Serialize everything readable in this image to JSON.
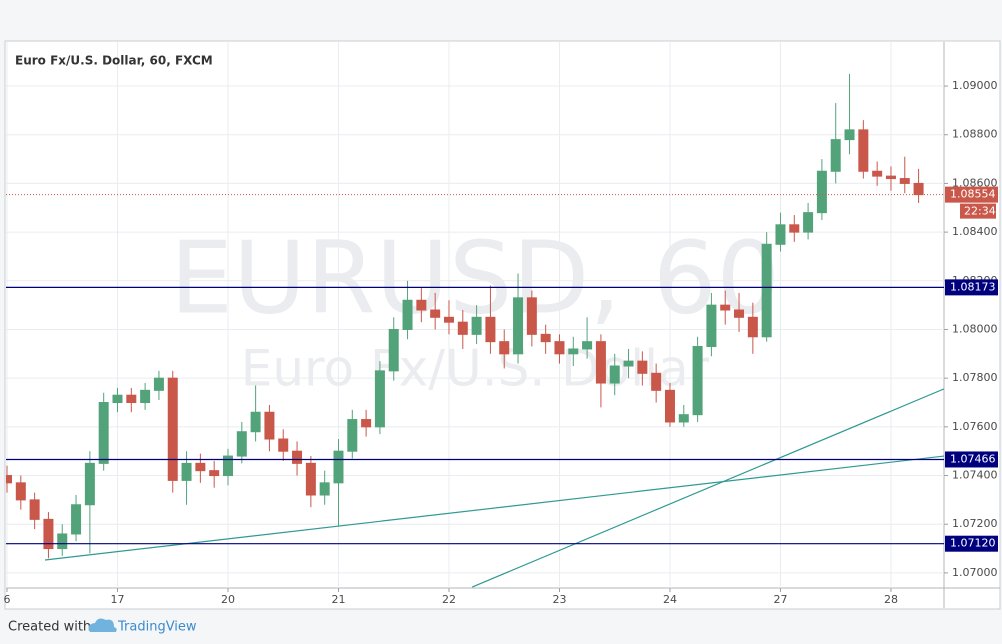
{
  "chart_data": {
    "type": "candlestick",
    "title": "Euro Fx/U.S. Dollar, 60, FXCM",
    "watermark_symbol": "EURUSD, 60",
    "watermark_name": "Euro Fx/U.S. Dollar",
    "x": [
      0,
      0.125,
      0.25,
      0.375,
      0.5,
      0.625,
      0.75,
      0.875,
      1,
      1.125,
      1.25,
      1.375,
      1.5,
      1.625,
      1.75,
      1.875,
      2,
      2.125,
      2.25,
      2.375,
      2.5,
      2.625,
      2.75,
      2.875,
      3,
      3.125,
      3.25,
      3.375,
      3.5,
      3.625,
      3.75,
      3.875,
      4,
      4.125,
      4.25,
      4.375,
      4.5,
      4.625,
      4.75,
      4.875,
      5,
      5.125,
      5.25,
      5.375,
      5.5,
      5.625,
      5.75,
      5.875,
      6,
      6.125,
      6.25,
      6.375,
      6.5,
      6.625,
      6.75,
      6.875,
      7,
      7.125,
      7.25,
      7.375,
      7.5,
      7.625,
      7.75,
      7.875,
      8,
      8.125,
      8.25
    ],
    "open": [
      1.074,
      1.0737,
      1.073,
      1.0722,
      1.071,
      1.0716,
      1.0728,
      1.0745,
      1.077,
      1.0773,
      1.077,
      1.0775,
      1.078,
      1.0738,
      1.0745,
      1.0742,
      1.074,
      1.0748,
      1.0758,
      1.0766,
      1.0755,
      1.075,
      1.0745,
      1.0732,
      1.0737,
      1.075,
      1.0763,
      1.076,
      1.0783,
      1.08,
      1.0812,
      1.0808,
      1.0805,
      1.0803,
      1.0798,
      1.0805,
      1.0795,
      1.079,
      1.0813,
      1.0798,
      1.0795,
      1.079,
      1.0792,
      1.0795,
      1.0778,
      1.0785,
      1.0787,
      1.0782,
      1.0775,
      1.0762,
      1.0765,
      1.0793,
      1.081,
      1.0808,
      1.0805,
      1.0797,
      1.0835,
      1.0843,
      1.084,
      1.0848,
      1.0865,
      1.0878,
      1.0882,
      1.0865,
      1.0863,
      1.0862,
      1.086
    ],
    "high": [
      1.0744,
      1.074,
      1.0733,
      1.0725,
      1.072,
      1.0732,
      1.075,
      1.0774,
      1.0776,
      1.0776,
      1.0778,
      1.0783,
      1.0783,
      1.075,
      1.0749,
      1.0746,
      1.0751,
      1.0762,
      1.0777,
      1.0769,
      1.0759,
      1.0754,
      1.0748,
      1.0742,
      1.0755,
      1.0767,
      1.0767,
      1.0787,
      1.0805,
      1.082,
      1.0817,
      1.0815,
      1.0812,
      1.0808,
      1.081,
      1.0818,
      1.08,
      1.0823,
      1.0816,
      1.0802,
      1.0798,
      1.0797,
      1.0805,
      1.0798,
      1.079,
      1.0792,
      1.0791,
      1.0786,
      1.0778,
      1.0769,
      1.0797,
      1.0815,
      1.0816,
      1.0815,
      1.0811,
      1.084,
      1.0848,
      1.0847,
      1.0852,
      1.087,
      1.0893,
      1.0905,
      1.0886,
      1.0869,
      1.0867,
      1.0871,
      1.0866
    ],
    "low": [
      1.0733,
      1.0726,
      1.0718,
      1.0706,
      1.0707,
      1.0713,
      1.0708,
      1.0742,
      1.0766,
      1.0766,
      1.0767,
      1.0771,
      1.0733,
      1.0728,
      1.0737,
      1.0735,
      1.0736,
      1.0745,
      1.0754,
      1.075,
      1.0746,
      1.074,
      1.0727,
      1.0728,
      1.0719,
      1.0747,
      1.0756,
      1.0757,
      1.0779,
      1.0796,
      1.0803,
      1.08,
      1.0798,
      1.0792,
      1.0794,
      1.079,
      1.0784,
      1.0786,
      1.0793,
      1.079,
      1.0786,
      1.0785,
      1.0788,
      1.0768,
      1.0773,
      1.078,
      1.0777,
      1.077,
      1.076,
      1.076,
      1.0762,
      1.0789,
      1.0802,
      1.0799,
      1.079,
      1.0795,
      1.0832,
      1.0836,
      1.0837,
      1.0845,
      1.086,
      1.0872,
      1.0862,
      1.0859,
      1.0857,
      1.0856,
      1.0852
    ],
    "close": [
      1.0737,
      1.073,
      1.0722,
      1.071,
      1.0716,
      1.0728,
      1.0745,
      1.077,
      1.0773,
      1.077,
      1.0775,
      1.078,
      1.0738,
      1.0745,
      1.0742,
      1.074,
      1.0748,
      1.0758,
      1.0766,
      1.0755,
      1.075,
      1.0745,
      1.0732,
      1.0737,
      1.075,
      1.0763,
      1.076,
      1.0783,
      1.08,
      1.0812,
      1.0808,
      1.0805,
      1.0803,
      1.0798,
      1.0805,
      1.0795,
      1.079,
      1.0813,
      1.0798,
      1.0795,
      1.079,
      1.0792,
      1.0795,
      1.0778,
      1.0785,
      1.0787,
      1.0782,
      1.0775,
      1.0762,
      1.0765,
      1.0793,
      1.081,
      1.0808,
      1.0805,
      1.0797,
      1.0835,
      1.0843,
      1.084,
      1.0848,
      1.0865,
      1.0878,
      1.0882,
      1.0865,
      1.0863,
      1.0862,
      1.086,
      1.08554
    ],
    "up_color": "#53a37a",
    "down_color": "#c9574a",
    "xlim": [
      0,
      8.48
    ],
    "ylim": [
      1.06938,
      1.09181
    ],
    "xticks": [
      {
        "value": 0,
        "label": "6"
      },
      {
        "value": 1,
        "label": "17"
      },
      {
        "value": 2,
        "label": "20"
      },
      {
        "value": 3,
        "label": "21"
      },
      {
        "value": 4,
        "label": "22"
      },
      {
        "value": 5,
        "label": "23"
      },
      {
        "value": 6,
        "label": "24"
      },
      {
        "value": 7,
        "label": "27"
      },
      {
        "value": 8,
        "label": "28"
      }
    ],
    "yticks": [
      {
        "value": 1.07,
        "label": "1.07000"
      },
      {
        "value": 1.072,
        "label": "1.07200"
      },
      {
        "value": 1.074,
        "label": "1.07400"
      },
      {
        "value": 1.076,
        "label": "1.07600"
      },
      {
        "value": 1.078,
        "label": "1.07800"
      },
      {
        "value": 1.08,
        "label": "1.08000"
      },
      {
        "value": 1.082,
        "label": "1.08200"
      },
      {
        "value": 1.084,
        "label": "1.08400"
      },
      {
        "value": 1.086,
        "label": "1.08600"
      },
      {
        "value": 1.088,
        "label": "1.08800"
      },
      {
        "value": 1.09,
        "label": "1.09000"
      }
    ],
    "grid": true,
    "levels": [
      1.08173,
      1.07466,
      {
        "value": 1.0712,
        "label": "1.07120"
      }
    ],
    "level_color": "#00007f",
    "trendlines": [
      {
        "x": [
          0.344,
          8.48
        ],
        "y": [
          1.07053,
          1.0748
        ]
      },
      {
        "x": [
          4.21,
          8.48
        ],
        "y": [
          1.06942,
          1.07756
        ]
      }
    ],
    "trendline_color": "#2f9a92",
    "last_price": 1.08554,
    "countdown": "22:34",
    "last_price_color": "#c9574a",
    "footer_text": "Created with",
    "footer_brand": "TradingView"
  }
}
